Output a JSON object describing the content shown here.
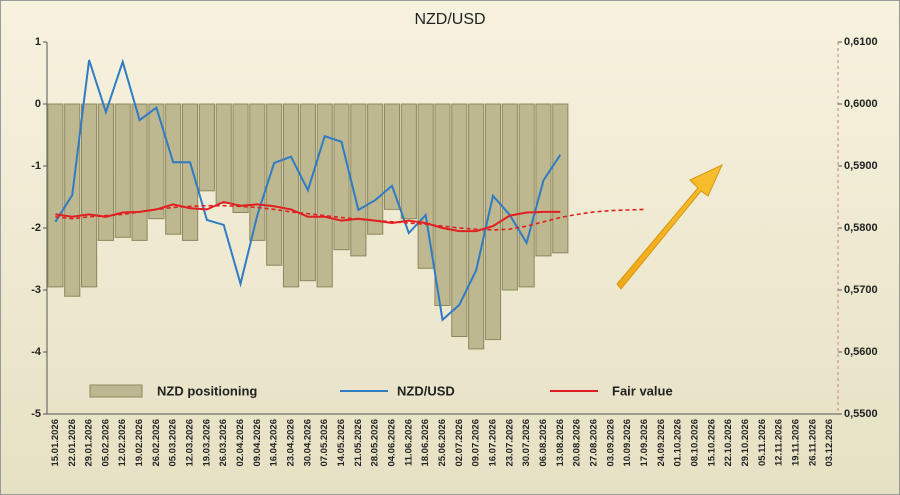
{
  "chart_data": {
    "type": "bar",
    "title": "NZD/USD",
    "categories": [
      "15.01.2026",
      "22.01.2026",
      "29.01.2026",
      "05.02.2026",
      "12.02.2026",
      "19.02.2026",
      "26.02.2026",
      "05.03.2026",
      "12.03.2026",
      "19.03.2026",
      "26.03.2026",
      "02.04.2026",
      "09.04.2026",
      "16.04.2026",
      "23.04.2026",
      "30.04.2026",
      "07.05.2026",
      "14.05.2026",
      "21.05.2026",
      "28.05.2026",
      "04.06.2026",
      "11.06.2026",
      "18.06.2026",
      "25.06.2026",
      "02.07.2026",
      "09.07.2026",
      "16.07.2026",
      "23.07.2026",
      "30.07.2026",
      "06.08.2026",
      "13.08.2026",
      "20.08.2026",
      "27.08.2026",
      "03.09.2026",
      "10.09.2026",
      "17.09.2026",
      "24.09.2026",
      "01.10.2026",
      "08.10.2026",
      "15.10.2026",
      "22.10.2026",
      "29.10.2026",
      "05.11.2026",
      "12.11.2026",
      "19.11.2026",
      "26.11.2026",
      "03.12.2026"
    ],
    "series": [
      {
        "name": "NZD positioning",
        "type": "bar",
        "axis": "y",
        "color": "#bdb88f",
        "values": [
          -2.95,
          -3.1,
          -2.95,
          -2.2,
          -2.15,
          -2.2,
          -1.85,
          -2.1,
          -2.2,
          -1.4,
          -1.6,
          -1.75,
          -2.2,
          -2.6,
          -2.95,
          -2.85,
          -2.95,
          -2.35,
          -2.45,
          -2.1,
          -1.7,
          -1.85,
          -2.65,
          -3.25,
          -3.75,
          -3.95,
          -3.8,
          -3.0,
          -2.95,
          -2.45,
          -2.4,
          null,
          null,
          null,
          null,
          null,
          null,
          null,
          null,
          null,
          null,
          null,
          null,
          null,
          null,
          null,
          null
        ]
      },
      {
        "name": "NZD/USD",
        "type": "line",
        "axis": "y2",
        "color": "#2f7bc4",
        "values": [
          0.581,
          0.5853,
          0.6071,
          0.5987,
          0.6068,
          0.5974,
          0.5994,
          0.5906,
          0.5906,
          0.5813,
          0.5805,
          0.571,
          0.5821,
          0.5905,
          0.5915,
          0.5861,
          0.5948,
          0.5939,
          0.5829,
          0.5845,
          0.5868,
          0.5792,
          0.5821,
          0.5652,
          0.5676,
          0.5732,
          0.5852,
          0.5821,
          0.5776,
          0.5877,
          0.5918,
          null,
          null,
          null,
          null,
          null,
          null,
          null,
          null,
          null,
          null,
          null,
          null,
          null,
          null,
          null,
          null
        ]
      },
      {
        "name": "Fair value",
        "type": "line",
        "axis": "y2",
        "color": "#e02020",
        "values": [
          0.5822,
          0.5818,
          0.5822,
          0.5818,
          0.5825,
          0.5826,
          0.583,
          0.5838,
          0.5832,
          0.583,
          0.5842,
          0.5836,
          0.5838,
          0.5835,
          0.583,
          0.5818,
          0.5818,
          0.5812,
          0.5815,
          0.5812,
          0.5808,
          0.5812,
          0.5808,
          0.58,
          0.5795,
          0.5795,
          0.5803,
          0.582,
          0.5825,
          0.5826,
          0.5826,
          null,
          null,
          null,
          null,
          null,
          null,
          null,
          null,
          null,
          null,
          null,
          null,
          null,
          null,
          null,
          null
        ]
      },
      {
        "type": "line",
        "axis": "y2",
        "color": "#e02020",
        "dashed": true,
        "values": [
          0.5818,
          0.5815,
          0.5818,
          0.582,
          0.5822,
          0.5826,
          0.583,
          0.5833,
          0.5835,
          0.5836,
          0.5836,
          0.5835,
          0.5833,
          0.583,
          0.5826,
          0.5823,
          0.582,
          0.5817,
          0.5814,
          0.5812,
          0.581,
          0.5808,
          0.5806,
          0.5803,
          0.58,
          0.5798,
          0.5797,
          0.5798,
          0.5803,
          0.581,
          0.5817,
          0.5822,
          0.5826,
          0.5828,
          0.5829,
          0.583,
          null,
          null,
          null,
          null,
          null,
          null,
          null,
          null,
          null,
          null,
          null
        ]
      }
    ],
    "ylim": [
      -5,
      1
    ],
    "yticks": [
      -5,
      -4,
      -3,
      -2,
      -1,
      0,
      1
    ],
    "y2lim": [
      0.55,
      0.61
    ],
    "y2ticks": [
      {
        "value": 0.55,
        "label": "0,5500"
      },
      {
        "value": 0.56,
        "label": "0,5600"
      },
      {
        "value": 0.57,
        "label": "0,5700"
      },
      {
        "value": 0.58,
        "label": "0,5800"
      },
      {
        "value": 0.59,
        "label": "0,5900"
      },
      {
        "value": 0.6,
        "label": "0,6000"
      },
      {
        "value": 0.61,
        "label": "0,6100"
      }
    ]
  }
}
